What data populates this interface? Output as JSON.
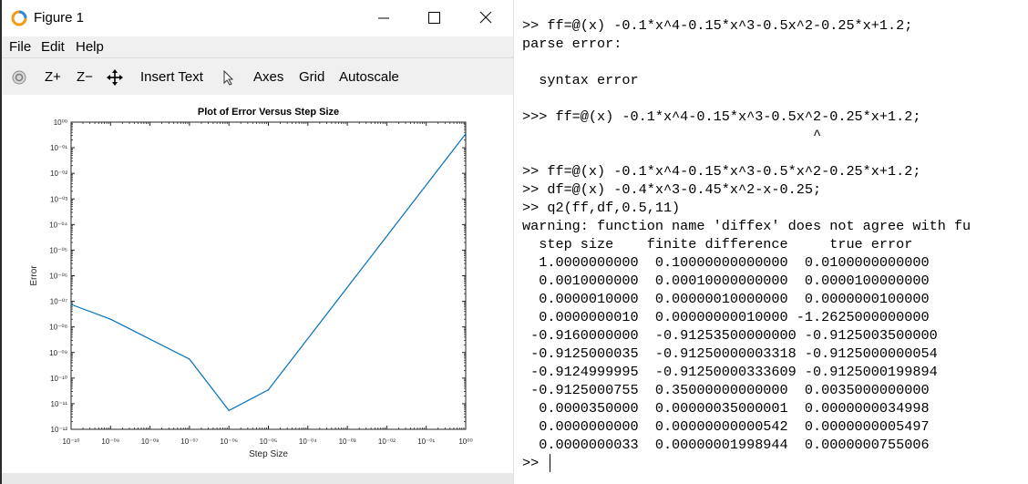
{
  "window": {
    "title": "Figure 1",
    "minimize_icon": "minimize-icon",
    "maximize_icon": "maximize-icon",
    "close_icon": "close-icon"
  },
  "menu": [
    "File",
    "Edit",
    "Help"
  ],
  "toolbar": {
    "rotate_icon": "rotate-icon",
    "zoom_in": "Z+",
    "zoom_out": "Z−",
    "pan_icon": "pan-icon",
    "insert_text": "Insert Text",
    "pointer_icon": "pointer-icon",
    "axes": "Axes",
    "grid": "Grid",
    "autoscale": "Autoscale"
  },
  "chart_data": {
    "type": "line",
    "title": "Plot of Error Versus Step Size",
    "xlabel": "Step Size",
    "ylabel": "Error",
    "xscale": "log",
    "yscale": "log",
    "xlim": [
      1e-10,
      1
    ],
    "ylim": [
      1e-12,
      1
    ],
    "xticks": [
      "10⁻¹⁰",
      "10⁻⁰⁹",
      "10⁻⁰⁸",
      "10⁻⁰⁷",
      "10⁻⁰⁶",
      "10⁻⁰⁵",
      "10⁻⁰⁴",
      "10⁻⁰³",
      "10⁻⁰²",
      "10⁻⁰¹",
      "10⁰⁰"
    ],
    "yticks": [
      "10⁻¹²",
      "10⁻¹¹",
      "10⁻¹⁰",
      "10⁻⁰⁹",
      "10⁻⁰⁸",
      "10⁻⁰⁷",
      "10⁻⁰⁶",
      "10⁻⁰⁵",
      "10⁻⁰⁴",
      "10⁻⁰³",
      "10⁻⁰²",
      "10⁻⁰¹",
      "10⁰⁰"
    ],
    "grid": false,
    "line_color": "#0072bd",
    "x": [
      1e-10,
      1e-09,
      1e-07,
      1e-06,
      1e-05,
      1
    ],
    "y": [
      7.55e-08,
      2e-08,
      5.5e-10,
      5.4e-12,
      3.5e-11,
      0.35
    ]
  },
  "terminal": {
    "lines": [
      ">> ff=@(x) -0.1*x^4-0.15*x^3-0.5x^2-0.25*x+1.2;",
      "parse error:",
      "",
      "  syntax error",
      "",
      ">>> ff=@(x) -0.1*x^4-0.15*x^3-0.5x^2-0.25*x+1.2;",
      "                                   ^",
      "",
      ">> ff=@(x) -0.1*x^4-0.15*x^3-0.5*x^2-0.25*x+1.2;",
      ">> df=@(x) -0.4*x^3-0.45*x^2-x-0.25;",
      ">> q2(ff,df,0.5,11)",
      "warning: function name 'diffex' does not agree with fu",
      "  step size    finite difference     true error",
      "  1.0000000000  0.10000000000000  0.0100000000000",
      "  0.0010000000  0.00010000000000  0.0000100000000",
      "  0.0000010000  0.00000010000000  0.0000000100000",
      "  0.0000000010  0.00000000010000 -1.2625000000000",
      " -0.9160000000  -0.91253500000000 -0.9125003500000",
      " -0.9125000035  -0.91250000003318 -0.9125000000054",
      " -0.9124999995  -0.91250000333609 -0.9125000199894",
      " -0.9125000755  0.35000000000000  0.0035000000000",
      "  0.0000350000  0.00000035000001  0.0000000034998",
      "  0.0000000000  0.00000000000542  0.0000000005497",
      "  0.0000000033  0.00000001998944  0.0000000755006",
      ">> "
    ]
  }
}
